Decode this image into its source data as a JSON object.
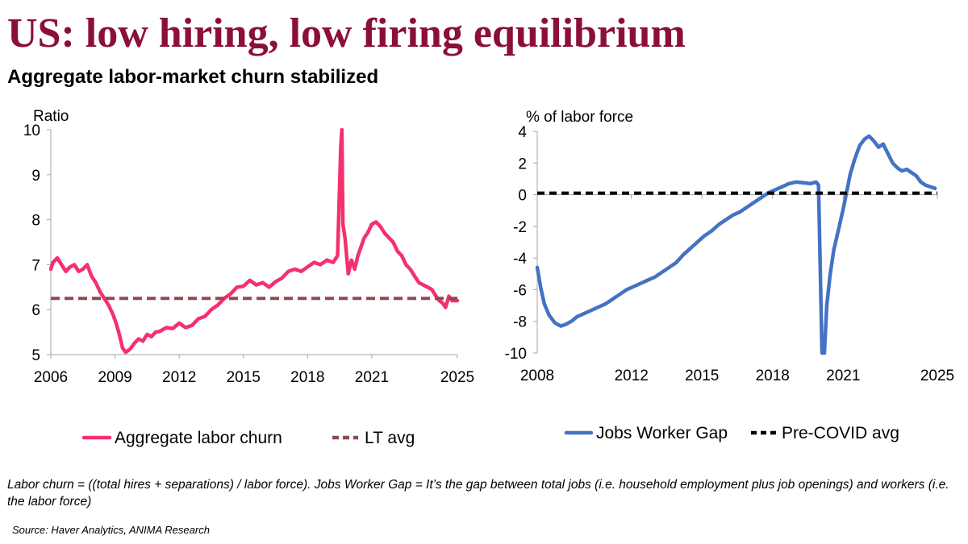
{
  "header": {
    "title": "US: low hiring, low firing equilibrium",
    "subtitle": "Aggregate labor-market churn stabilized"
  },
  "footer": {
    "footnote": "Labor churn = ((total hires + separations) / labor force). Jobs Worker Gap = It’s the gap between total jobs (i.e. household employment plus job openings) and workers (i.e. the labor force)",
    "source": "Source: Haver Analytics, ANIMA Research"
  },
  "chart_data": [
    {
      "type": "line",
      "ylabel": "Ratio",
      "xlim": [
        2006,
        2025
      ],
      "ylim": [
        5,
        10
      ],
      "xticks": [
        2006,
        2009,
        2012,
        2015,
        2018,
        2021,
        2025
      ],
      "xtick_labels": [
        "2006",
        "2009",
        "2012",
        "2015",
        "2018",
        "2021",
        "2025"
      ],
      "yticks": [
        5,
        6,
        7,
        8,
        9,
        10
      ],
      "ytick_labels": [
        "5",
        "6",
        "7",
        "8",
        "9",
        "10"
      ],
      "legend_position": "bottom",
      "grid": false,
      "series": [
        {
          "name": "Aggregate labor churn",
          "style": "solid",
          "color": "#f4306d",
          "x": [
            2006.0,
            2006.1,
            2006.3,
            2006.5,
            2006.7,
            2006.9,
            2007.1,
            2007.3,
            2007.5,
            2007.7,
            2007.9,
            2008.1,
            2008.3,
            2008.5,
            2008.7,
            2008.9,
            2009.05,
            2009.2,
            2009.35,
            2009.5,
            2009.7,
            2009.9,
            2010.1,
            2010.3,
            2010.5,
            2010.7,
            2010.9,
            2011.1,
            2011.4,
            2011.7,
            2012.0,
            2012.3,
            2012.6,
            2012.9,
            2013.2,
            2013.5,
            2013.8,
            2014.1,
            2014.4,
            2014.7,
            2015.0,
            2015.3,
            2015.6,
            2015.9,
            2016.2,
            2016.5,
            2016.8,
            2017.1,
            2017.4,
            2017.7,
            2018.0,
            2018.3,
            2018.6,
            2018.9,
            2019.2,
            2019.4,
            2019.55,
            2019.6,
            2019.65,
            2019.75,
            2019.9,
            2020.05,
            2020.2,
            2020.35,
            2020.5,
            2020.65,
            2020.8,
            2021.0,
            2021.2,
            2021.4,
            2021.6,
            2021.8,
            2022.0,
            2022.2,
            2022.4,
            2022.6,
            2022.8,
            2023.0,
            2023.2,
            2023.4,
            2023.6,
            2023.8,
            2024.0,
            2024.15,
            2024.3,
            2024.45,
            2024.6,
            2024.75,
            2024.9,
            2025.0
          ],
          "y": [
            6.9,
            7.05,
            7.15,
            7.0,
            6.85,
            6.95,
            7.0,
            6.85,
            6.9,
            7.0,
            6.75,
            6.6,
            6.4,
            6.25,
            6.1,
            5.9,
            5.7,
            5.45,
            5.15,
            5.05,
            5.12,
            5.25,
            5.35,
            5.3,
            5.45,
            5.4,
            5.5,
            5.52,
            5.6,
            5.58,
            5.7,
            5.6,
            5.65,
            5.8,
            5.85,
            6.0,
            6.1,
            6.25,
            6.35,
            6.5,
            6.52,
            6.65,
            6.55,
            6.6,
            6.5,
            6.62,
            6.7,
            6.85,
            6.9,
            6.85,
            6.95,
            7.05,
            7.0,
            7.1,
            7.05,
            7.2,
            9.6,
            10.0,
            7.9,
            7.6,
            6.8,
            7.1,
            6.9,
            7.2,
            7.4,
            7.6,
            7.7,
            7.9,
            7.95,
            7.85,
            7.7,
            7.6,
            7.5,
            7.3,
            7.2,
            7.0,
            6.9,
            6.75,
            6.6,
            6.55,
            6.5,
            6.45,
            6.3,
            6.2,
            6.15,
            6.05,
            6.3,
            6.2,
            6.2,
            6.2
          ]
        },
        {
          "name": "LT avg",
          "style": "dashed",
          "color": "#8b4c50",
          "x": [
            2006.0,
            2025.0
          ],
          "y": [
            6.25,
            6.25
          ]
        }
      ]
    },
    {
      "type": "line",
      "ylabel": "% of labor force",
      "xlim": [
        2008,
        2025
      ],
      "ylim": [
        -10,
        4
      ],
      "xticks": [
        2008,
        2012,
        2015,
        2018,
        2021,
        2025
      ],
      "xtick_labels": [
        "2008",
        "2012",
        "2015",
        "2018",
        "2021",
        "2025"
      ],
      "yticks": [
        -10,
        -8,
        -6,
        -4,
        -2,
        0,
        2,
        4
      ],
      "ytick_labels": [
        "-10",
        "-8",
        "-6",
        "-4",
        "-2",
        "0",
        "2",
        "4"
      ],
      "legend_position": "bottom",
      "grid": false,
      "series": [
        {
          "name": "Jobs Worker Gap",
          "style": "solid",
          "color": "#4472c4",
          "x": [
            2008.0,
            2008.15,
            2008.3,
            2008.5,
            2008.75,
            2009.0,
            2009.2,
            2009.45,
            2009.7,
            2010.0,
            2010.3,
            2010.6,
            2010.9,
            2011.2,
            2011.5,
            2011.8,
            2012.1,
            2012.4,
            2012.7,
            2013.0,
            2013.3,
            2013.6,
            2013.9,
            2014.2,
            2014.5,
            2014.8,
            2015.1,
            2015.4,
            2015.7,
            2016.0,
            2016.3,
            2016.6,
            2016.9,
            2017.2,
            2017.5,
            2017.8,
            2018.1,
            2018.4,
            2018.7,
            2019.0,
            2019.3,
            2019.6,
            2019.85,
            2019.95,
            2020.1,
            2020.2,
            2020.3,
            2020.45,
            2020.6,
            2020.8,
            2021.0,
            2021.15,
            2021.3,
            2021.5,
            2021.7,
            2021.9,
            2022.1,
            2022.3,
            2022.5,
            2022.7,
            2022.9,
            2023.1,
            2023.3,
            2023.5,
            2023.7,
            2023.9,
            2024.1,
            2024.3,
            2024.5,
            2024.7,
            2024.9
          ],
          "y": [
            -4.6,
            -5.9,
            -6.9,
            -7.6,
            -8.1,
            -8.3,
            -8.2,
            -8.0,
            -7.7,
            -7.5,
            -7.3,
            -7.1,
            -6.9,
            -6.6,
            -6.3,
            -6.0,
            -5.8,
            -5.6,
            -5.4,
            -5.2,
            -4.9,
            -4.6,
            -4.3,
            -3.8,
            -3.4,
            -3.0,
            -2.6,
            -2.3,
            -1.9,
            -1.6,
            -1.3,
            -1.1,
            -0.8,
            -0.5,
            -0.2,
            0.1,
            0.3,
            0.5,
            0.7,
            0.8,
            0.75,
            0.7,
            0.8,
            0.6,
            -10.0,
            -10.0,
            -7.0,
            -5.0,
            -3.5,
            -2.2,
            -0.9,
            0.2,
            1.3,
            2.3,
            3.1,
            3.5,
            3.7,
            3.4,
            3.0,
            3.2,
            2.6,
            2.0,
            1.7,
            1.5,
            1.6,
            1.4,
            1.2,
            0.8,
            0.6,
            0.5,
            0.4
          ]
        },
        {
          "name": "Pre-COVID avg",
          "style": "dashed",
          "color": "#000000",
          "x": [
            2008.0,
            2025.0
          ],
          "y": [
            0.1,
            0.1
          ]
        }
      ]
    }
  ]
}
